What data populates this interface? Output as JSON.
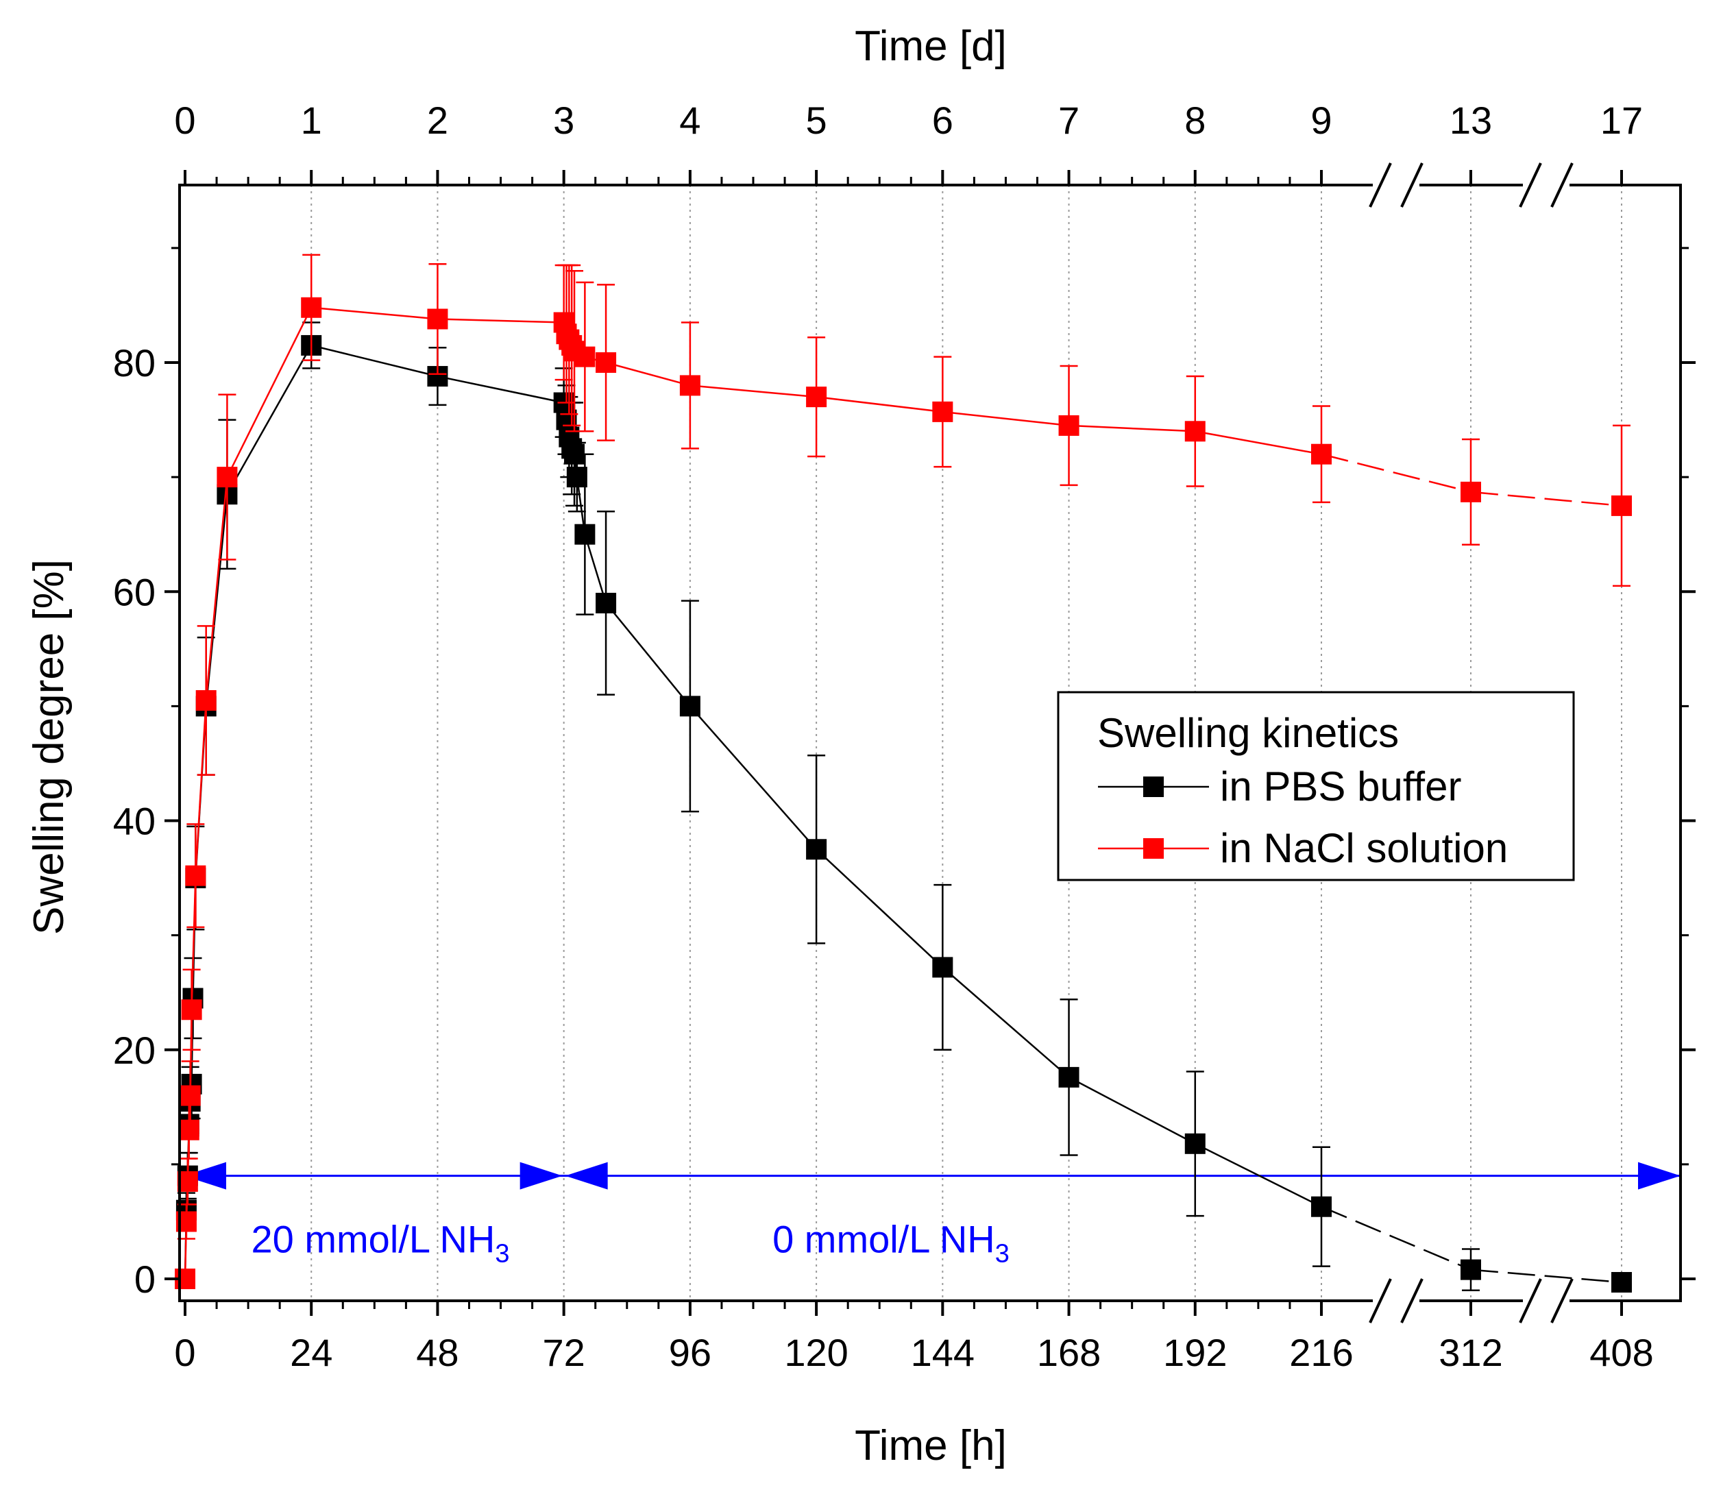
{
  "chart_data": {
    "type": "line",
    "title": "",
    "xlabel": "Time [h]",
    "x2label": "Time [d]",
    "ylabel": "Swelling degree [%]",
    "ylim": [
      -2,
      95
    ],
    "grid": "vertical dotted lines at major x ticks",
    "x_ticks_bottom": [
      "0",
      "24",
      "48",
      "72",
      "96",
      "120",
      "144",
      "168",
      "192",
      "216",
      "312",
      "408"
    ],
    "x_ticks_top": [
      "0",
      "1",
      "2",
      "3",
      "4",
      "5",
      "6",
      "7",
      "8",
      "9",
      "13",
      "17"
    ],
    "x_break_note": "axis broken between 216 and 312 h and between 312 and 408 h",
    "y_ticks": [
      "0",
      "20",
      "40",
      "60",
      "80"
    ],
    "series": [
      {
        "name": "in PBS buffer",
        "color": "#000000",
        "points": [
          {
            "x": 0,
            "y": 0,
            "err": 0.5
          },
          {
            "x": 0.25,
            "y": 6,
            "err": 1.5
          },
          {
            "x": 0.5,
            "y": 9,
            "err": 2
          },
          {
            "x": 0.75,
            "y": 13.5,
            "err": 2.5
          },
          {
            "x": 1,
            "y": 15.5,
            "err": 3
          },
          {
            "x": 1.25,
            "y": 17,
            "err": 3
          },
          {
            "x": 1.5,
            "y": 24.5,
            "err": 3.5
          },
          {
            "x": 2,
            "y": 35,
            "err": 4.5
          },
          {
            "x": 4,
            "y": 50,
            "err": 6
          },
          {
            "x": 8,
            "y": 68.5,
            "err": 6.5
          },
          {
            "x": 24,
            "y": 81.5,
            "err": 2
          },
          {
            "x": 48,
            "y": 78.8,
            "err": 2.5
          },
          {
            "x": 72,
            "y": 76.5,
            "err": 3
          },
          {
            "x": 72.5,
            "y": 75,
            "err": 3
          },
          {
            "x": 73,
            "y": 73.5,
            "err": 3.5
          },
          {
            "x": 73.5,
            "y": 72.5,
            "err": 4
          },
          {
            "x": 74,
            "y": 72,
            "err": 4.5
          },
          {
            "x": 74.5,
            "y": 70,
            "err": 3
          },
          {
            "x": 76,
            "y": 65,
            "err": 7
          },
          {
            "x": 80,
            "y": 59,
            "err": 8
          },
          {
            "x": 96,
            "y": 50,
            "err": 9.2
          },
          {
            "x": 120,
            "y": 37.5,
            "err": 8.2
          },
          {
            "x": 144,
            "y": 27.2,
            "err": 7.2
          },
          {
            "x": 168,
            "y": 17.6,
            "err": 6.8
          },
          {
            "x": 192,
            "y": 11.8,
            "err": 6.3
          },
          {
            "x": 216,
            "y": 6.3,
            "err": 5.2
          },
          {
            "x": 312,
            "y": 0.8,
            "err": 1.8
          },
          {
            "x": 408,
            "y": -0.3,
            "err": 0.4
          }
        ]
      },
      {
        "name": "in NaCl solution",
        "color": "#ff0000",
        "points": [
          {
            "x": 0,
            "y": 0,
            "err": 0.5
          },
          {
            "x": 0.25,
            "y": 5,
            "err": 1.5
          },
          {
            "x": 0.5,
            "y": 8.5,
            "err": 2
          },
          {
            "x": 0.75,
            "y": 13,
            "err": 2.5
          },
          {
            "x": 1,
            "y": 16,
            "err": 3
          },
          {
            "x": 1.25,
            "y": 23.5,
            "err": 3.5
          },
          {
            "x": 2,
            "y": 35.2,
            "err": 4.5
          },
          {
            "x": 4,
            "y": 50.5,
            "err": 6.5
          },
          {
            "x": 8,
            "y": 70,
            "err": 7.2
          },
          {
            "x": 24,
            "y": 84.8,
            "err": 4.6
          },
          {
            "x": 48,
            "y": 83.8,
            "err": 4.8
          },
          {
            "x": 72,
            "y": 83.5,
            "err": 5
          },
          {
            "x": 72.5,
            "y": 82.5,
            "err": 6
          },
          {
            "x": 73,
            "y": 82,
            "err": 6.5
          },
          {
            "x": 73.5,
            "y": 81.5,
            "err": 7
          },
          {
            "x": 74,
            "y": 81,
            "err": 7
          },
          {
            "x": 76,
            "y": 80.5,
            "err": 6.5
          },
          {
            "x": 80,
            "y": 80,
            "err": 6.8
          },
          {
            "x": 96,
            "y": 78,
            "err": 5.5
          },
          {
            "x": 120,
            "y": 77,
            "err": 5.2
          },
          {
            "x": 144,
            "y": 75.7,
            "err": 4.8
          },
          {
            "x": 168,
            "y": 74.5,
            "err": 5.2
          },
          {
            "x": 192,
            "y": 74,
            "err": 4.8
          },
          {
            "x": 216,
            "y": 72,
            "err": 4.2
          },
          {
            "x": 312,
            "y": 68.7,
            "err": 4.6
          },
          {
            "x": 408,
            "y": 67.5,
            "err": 7
          }
        ]
      }
    ],
    "legend": {
      "title": "Swelling kinetics",
      "position": "right-center",
      "entries": [
        "in PBS buffer",
        "in NaCl solution"
      ]
    },
    "annotations": {
      "y_level": 9,
      "color": "#0000ff",
      "segment1": {
        "from": 0,
        "to": 72,
        "label": "20 mmol/L NH",
        "subscript": "3"
      },
      "segment2": {
        "from": 72,
        "to": 408,
        "label": "0 mmol/L NH",
        "subscript": "3"
      }
    }
  }
}
